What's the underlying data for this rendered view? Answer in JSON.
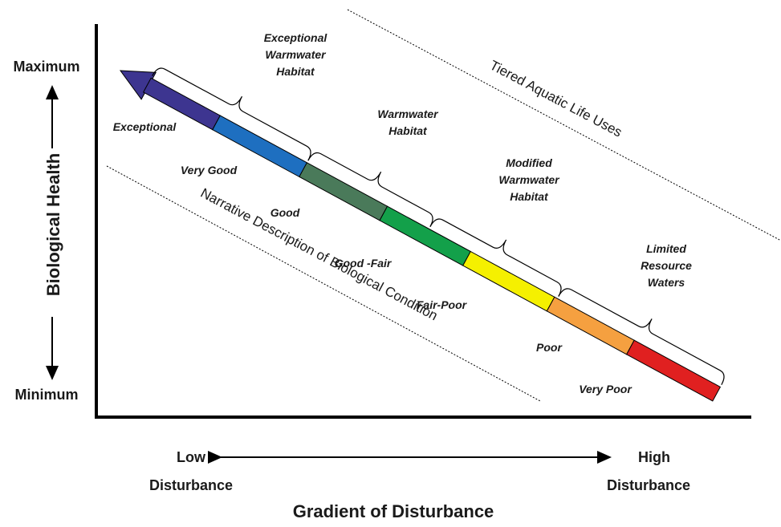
{
  "y_axis": {
    "label": "Biological Health",
    "max": "Maximum",
    "min": "Minimum"
  },
  "x_axis": {
    "label": "Gradient of Disturbance",
    "low": [
      "Low",
      "Disturbance"
    ],
    "high": [
      "High",
      "Disturbance"
    ]
  },
  "conditions": [
    "Exceptional",
    "Very Good",
    "Good",
    "Good -Fair",
    "Fair-Poor",
    "Poor",
    "Very Poor"
  ],
  "uses": [
    [
      "Exceptional",
      "Warmwater",
      "Habitat"
    ],
    [
      "Warmwater",
      "Habitat"
    ],
    [
      "Modified",
      "Warmwater",
      "Habitat"
    ],
    [
      "Limited",
      "Resource",
      "Waters"
    ]
  ],
  "diagonal_labels": {
    "uses": "Tiered Aquatic Life Uses",
    "conditions": "Narrative Description of Biological Condition"
  }
}
